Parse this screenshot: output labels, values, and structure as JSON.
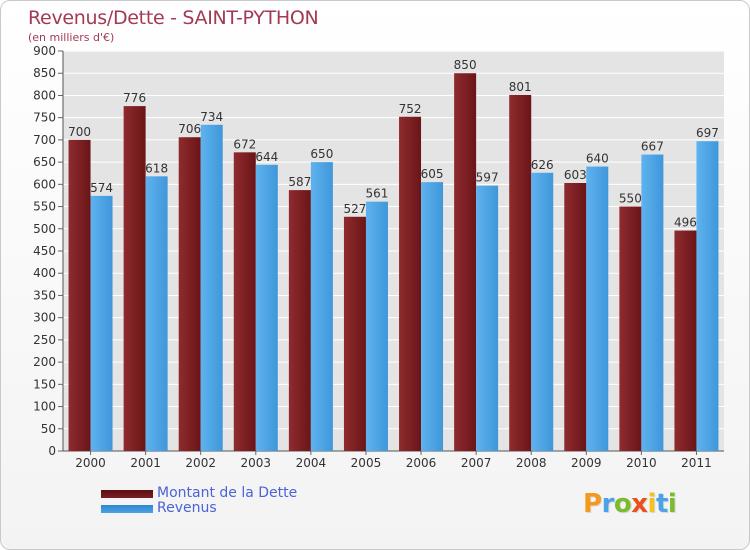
{
  "chart_data": {
    "type": "bar",
    "title": "Revenus/Dette - SAINT-PYTHON",
    "subtitle": "(en milliers d'€)",
    "categories": [
      "2000",
      "2001",
      "2002",
      "2003",
      "2004",
      "2005",
      "2006",
      "2007",
      "2008",
      "2009",
      "2010",
      "2011"
    ],
    "series": [
      {
        "name": "Montant de la Dette",
        "color": "#7a1f22",
        "values": [
          700,
          776,
          706,
          672,
          587,
          527,
          752,
          850,
          801,
          603,
          550,
          496
        ]
      },
      {
        "name": "Revenus",
        "color": "#4aa3e6",
        "values": [
          574,
          618,
          734,
          644,
          650,
          561,
          605,
          597,
          626,
          640,
          667,
          697
        ]
      }
    ],
    "ylim": [
      0,
      900
    ],
    "yticks": [
      0,
      50,
      100,
      150,
      200,
      250,
      300,
      350,
      400,
      450,
      500,
      550,
      600,
      650,
      700,
      750,
      800,
      850,
      900
    ],
    "grid": true,
    "legend_position": "bottom-left",
    "data_labels": true
  },
  "logo": {
    "text": "Proxiti",
    "letters": [
      {
        "ch": "P",
        "color": "#f39a1e"
      },
      {
        "ch": "r",
        "color": "#4aa3e6"
      },
      {
        "ch": "o",
        "color": "#7dbb2e"
      },
      {
        "ch": "x",
        "color": "#e8501e"
      },
      {
        "ch": "i",
        "color": "#f3c21e"
      },
      {
        "ch": "t",
        "color": "#4aa3e6"
      },
      {
        "ch": "i",
        "color": "#7dbb2e"
      }
    ]
  }
}
